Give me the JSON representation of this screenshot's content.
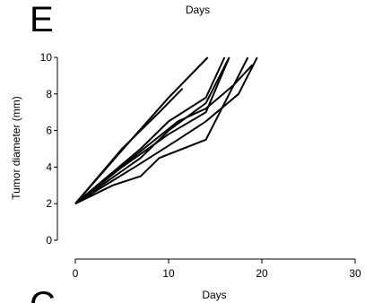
{
  "panel_letter": "E",
  "top_xlabel": "Days",
  "next_panel_letter": "C",
  "chart_data": {
    "type": "line",
    "title": "",
    "xlabel": "Days",
    "ylabel": "Tumor diameter (mm)",
    "xlim": [
      0,
      30
    ],
    "ylim": [
      0,
      10
    ],
    "xticks": [
      0,
      10,
      20,
      30
    ],
    "yticks": [
      0,
      2,
      4,
      6,
      8,
      10
    ],
    "grid": false,
    "legend": false,
    "series": [
      {
        "x": [
          0,
          4,
          7,
          9,
          14,
          18.5
        ],
        "y": [
          2,
          3.0,
          3.5,
          4.5,
          5.5,
          10
        ]
      },
      {
        "x": [
          0,
          7,
          11,
          14,
          17.5,
          19.5
        ],
        "y": [
          2,
          4.2,
          5.5,
          6.5,
          8.0,
          10
        ]
      },
      {
        "x": [
          0,
          5,
          10,
          14,
          16.5
        ],
        "y": [
          2,
          4.0,
          5.8,
          7.0,
          10
        ]
      },
      {
        "x": [
          0,
          7,
          10,
          14,
          16.5
        ],
        "y": [
          2,
          4.5,
          6.0,
          7.5,
          10
        ]
      },
      {
        "x": [
          0,
          7,
          10,
          14,
          16.0
        ],
        "y": [
          2,
          5.0,
          6.5,
          7.8,
          10
        ]
      },
      {
        "x": [
          0,
          11,
          14,
          17,
          19.0
        ],
        "y": [
          2,
          6.5,
          7.2,
          8.5,
          9.6
        ]
      },
      {
        "x": [
          0,
          5,
          9,
          11.5
        ],
        "y": [
          2,
          5.0,
          7.0,
          8.3
        ]
      },
      {
        "x": [
          0,
          6,
          10,
          14.2
        ],
        "y": [
          2,
          5.5,
          7.8,
          10
        ]
      }
    ]
  }
}
